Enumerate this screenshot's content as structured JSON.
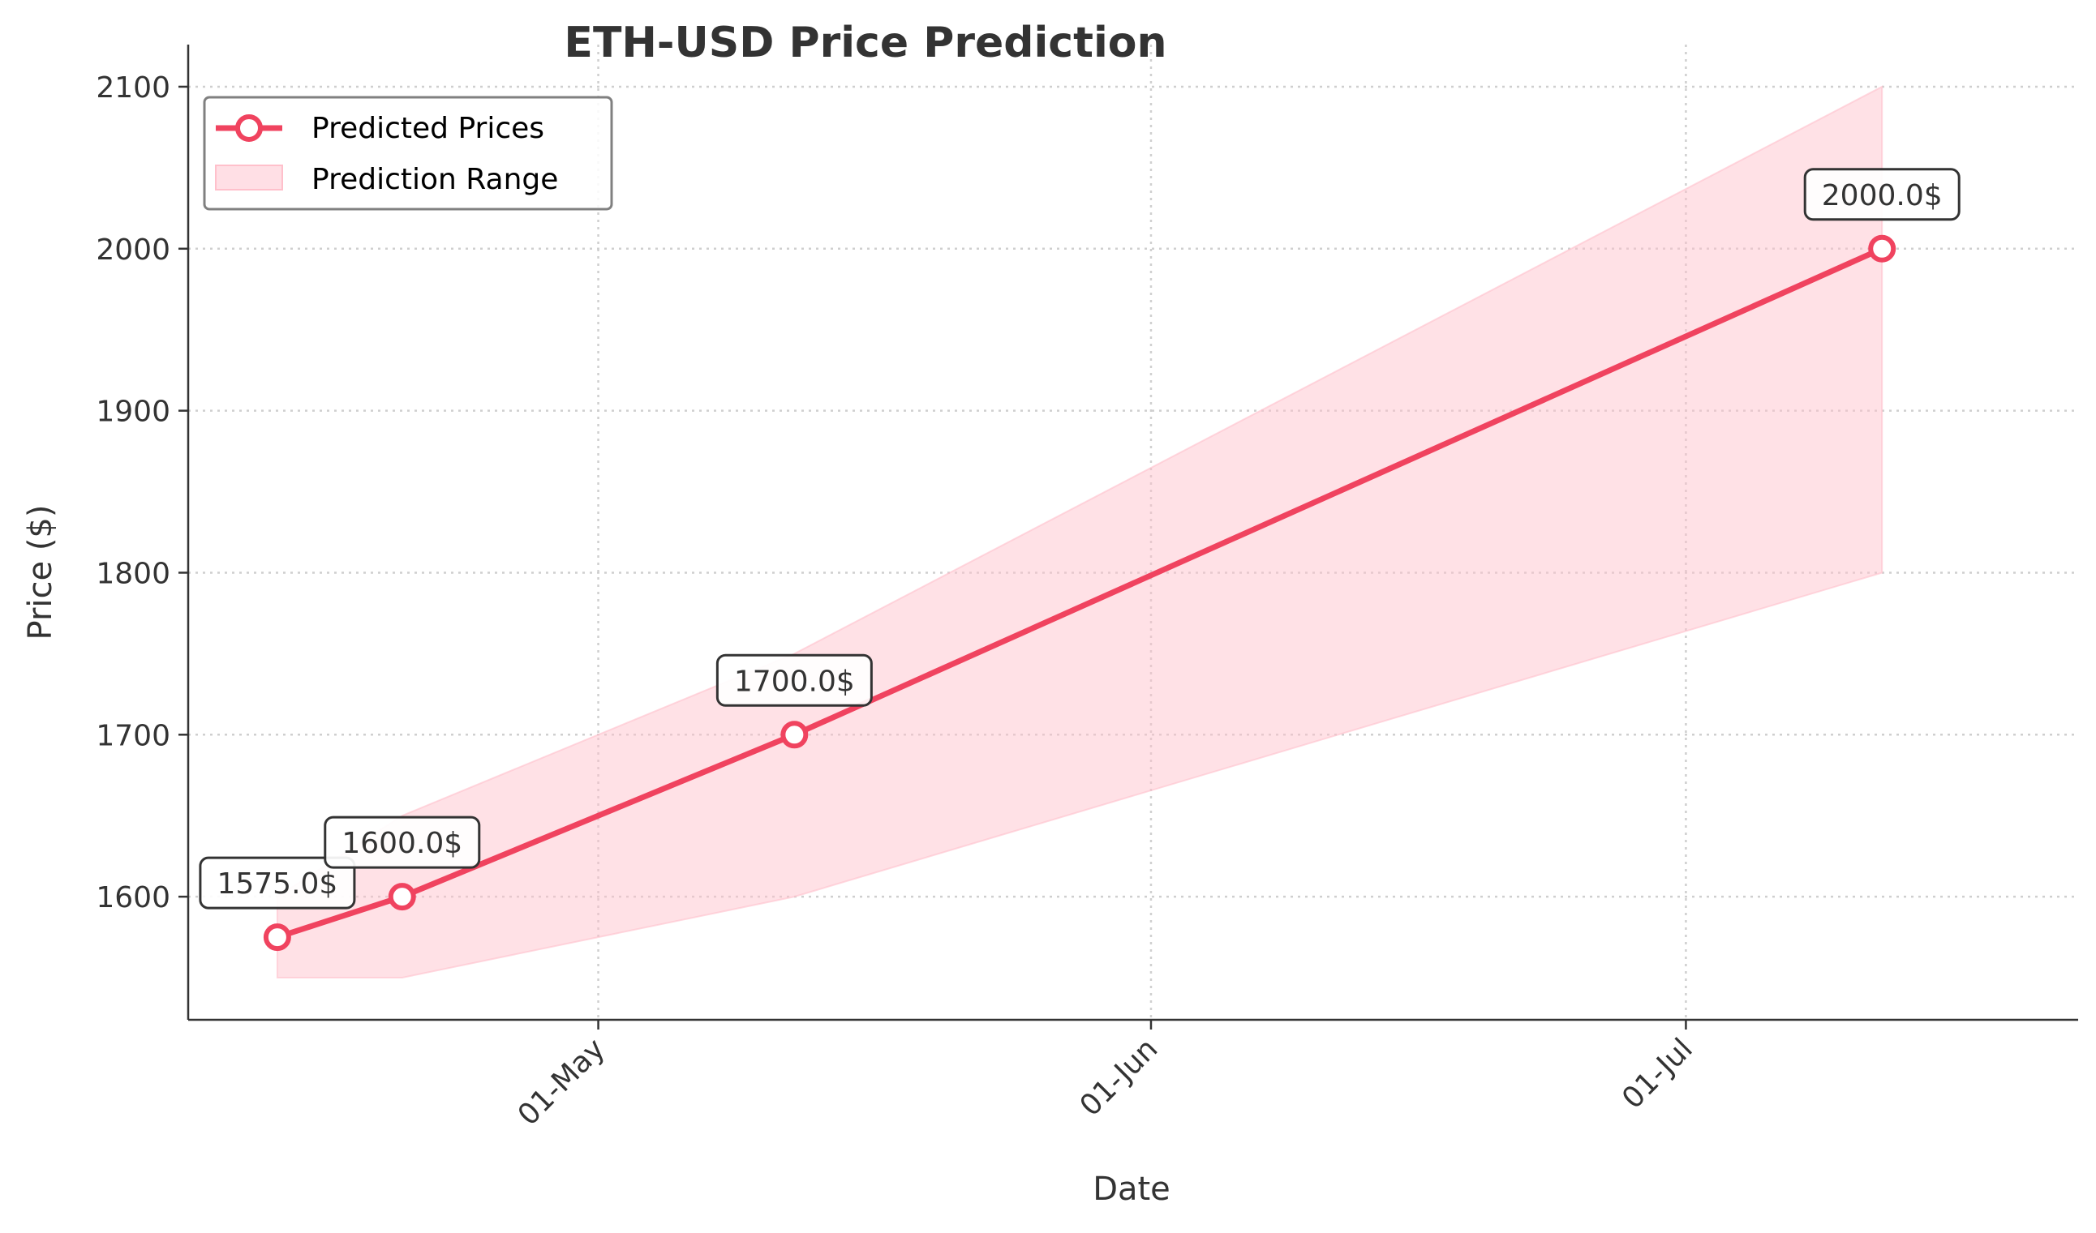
{
  "chart_data": {
    "type": "line",
    "title": "ETH-USD Price Prediction",
    "xlabel": "Date",
    "ylabel": "Price ($)",
    "x_ticks": [
      {
        "date": "2023-05-01",
        "label": "01-May"
      },
      {
        "date": "2023-06-01",
        "label": "01-Jun"
      },
      {
        "date": "2023-07-01",
        "label": "01-Jul"
      }
    ],
    "xlim": [
      "2023-04-08",
      "2023-07-23"
    ],
    "ylim": [
      1524,
      2126
    ],
    "y_ticks": [
      1600,
      1700,
      1800,
      1900,
      2000,
      2100
    ],
    "grid": true,
    "legend_position": "top-left",
    "colors": {
      "line": "#f0435f",
      "marker_fill": "#ffffff",
      "range_fill": "#ffc0cb",
      "grid": "#cfcfcf",
      "axis": "#333333",
      "text": "#333333"
    },
    "series": [
      {
        "name": "Predicted Prices",
        "x": [
          "2023-04-13",
          "2023-04-20",
          "2023-05-12",
          "2023-07-12"
        ],
        "values": [
          1575.0,
          1600.0,
          1700.0,
          2000.0
        ],
        "data_labels": [
          "1575.0$",
          "1600.0$",
          "1700.0$",
          "2000.0$"
        ]
      }
    ],
    "range": {
      "name": "Prediction Range",
      "x": [
        "2023-04-13",
        "2023-04-20",
        "2023-05-12",
        "2023-07-12"
      ],
      "lower": [
        1550,
        1550,
        1600,
        1800
      ],
      "upper": [
        1600,
        1650,
        1750,
        2100
      ]
    }
  }
}
